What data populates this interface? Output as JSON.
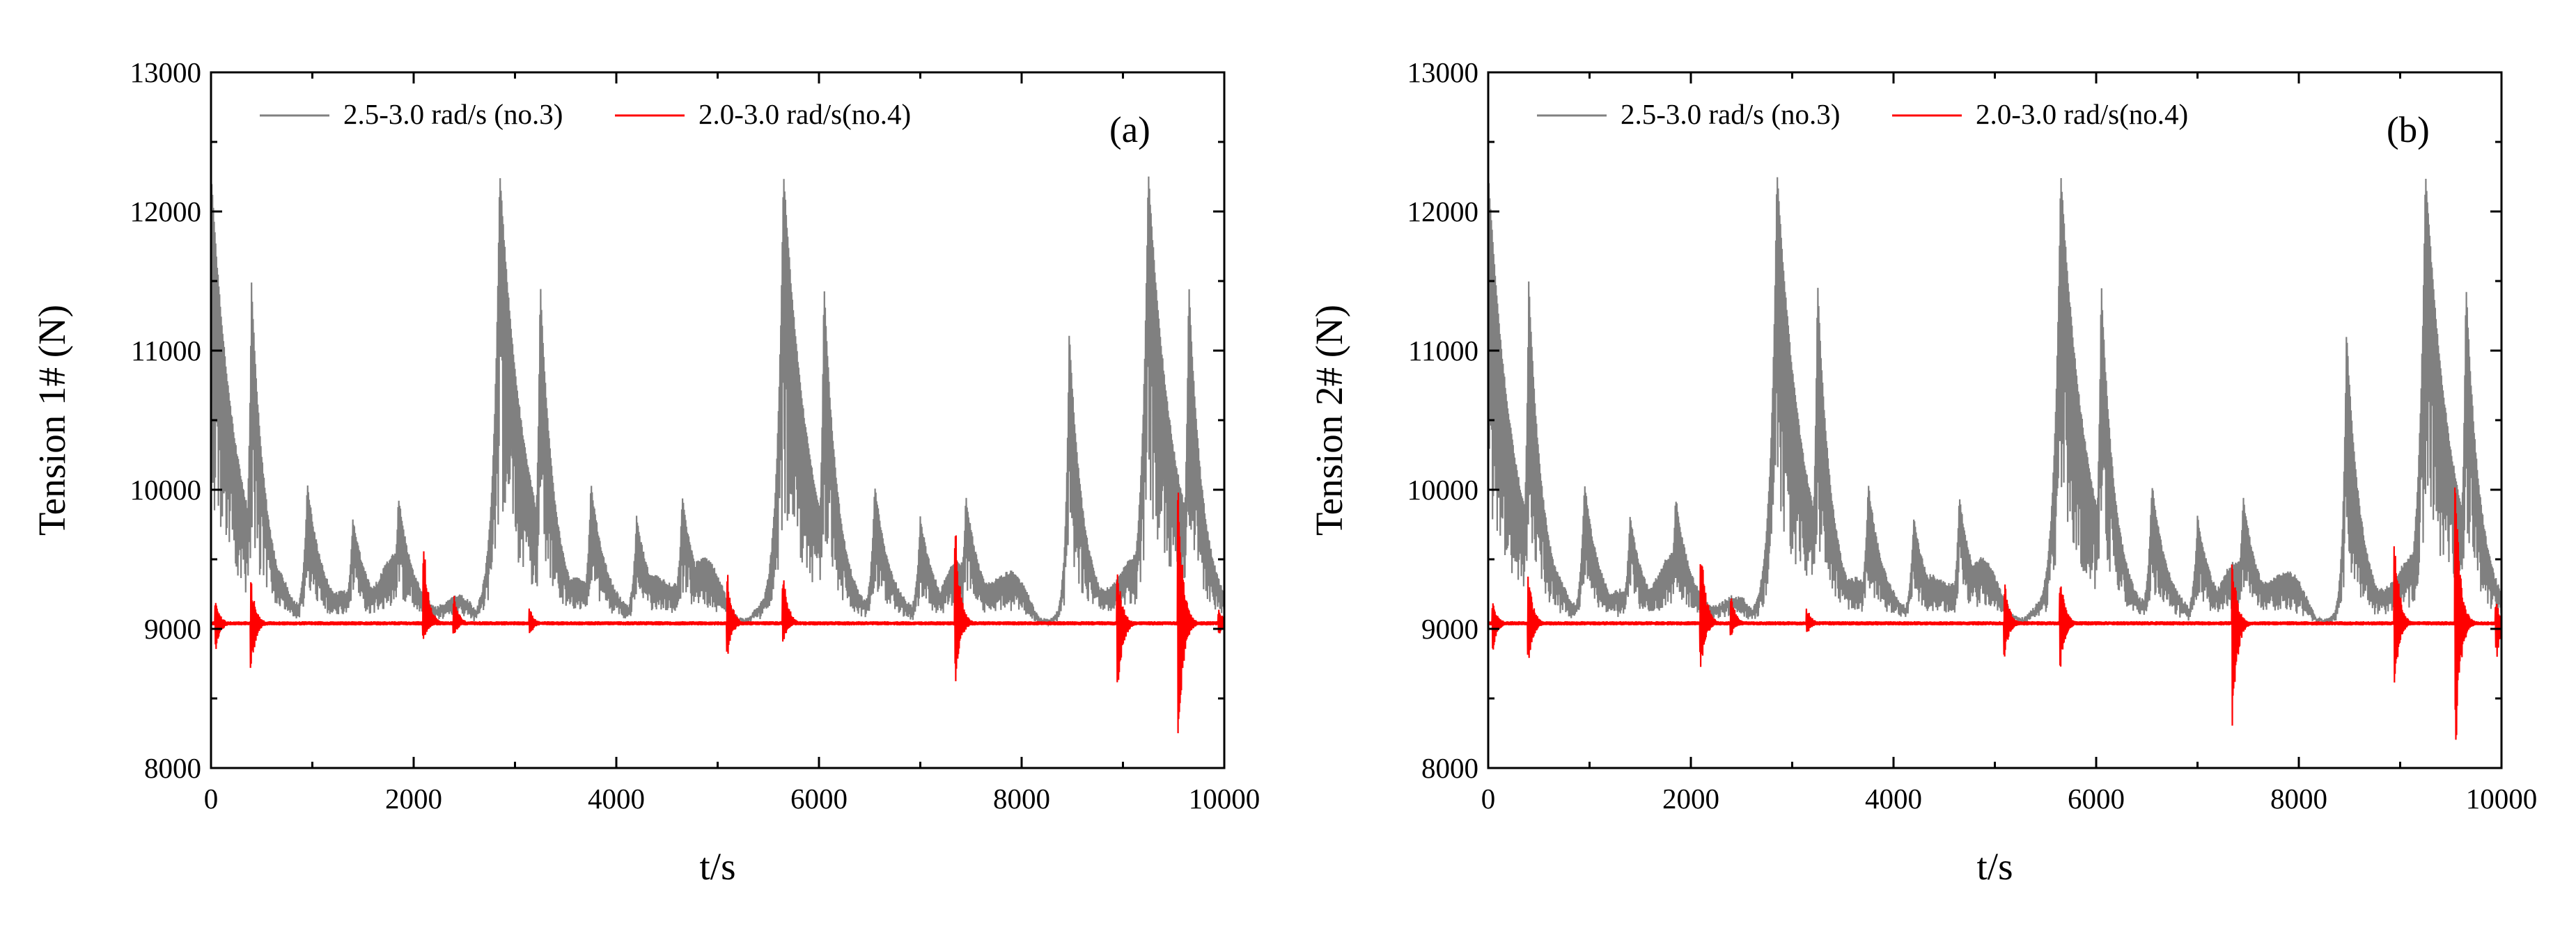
{
  "chart_data": [
    {
      "type": "line",
      "panel_label": "(a)",
      "xlabel": "t/s",
      "ylabel": "Tension 1# (N)",
      "xlim": [
        0,
        10000
      ],
      "ylim": [
        8000,
        13000
      ],
      "xticks": [
        0,
        2000,
        4000,
        6000,
        8000,
        10000
      ],
      "yticks": [
        8000,
        9000,
        10000,
        11000,
        12000,
        13000
      ],
      "legend_position": "top-left",
      "series": [
        {
          "name": "2.5-3.0 rad/s (no.3)",
          "color": "#808080",
          "baseline": 9050,
          "peaks": [
            {
              "t": 0,
              "v": 12300
            },
            {
              "t": 400,
              "v": 11500
            },
            {
              "t": 950,
              "v": 10050
            },
            {
              "t": 1400,
              "v": 9800
            },
            {
              "t": 1850,
              "v": 9950
            },
            {
              "t": 2850,
              "v": 12300
            },
            {
              "t": 3250,
              "v": 11500
            },
            {
              "t": 3750,
              "v": 10050
            },
            {
              "t": 4200,
              "v": 9800
            },
            {
              "t": 4650,
              "v": 9950
            },
            {
              "t": 5650,
              "v": 12300
            },
            {
              "t": 6050,
              "v": 11500
            },
            {
              "t": 6550,
              "v": 10050
            },
            {
              "t": 7000,
              "v": 9800
            },
            {
              "t": 7450,
              "v": 9950
            },
            {
              "t": 8470,
              "v": 11150
            },
            {
              "t": 9250,
              "v": 12300
            },
            {
              "t": 9650,
              "v": 11500
            }
          ]
        },
        {
          "name": "2.0-3.0 rad/s(no.4)",
          "color": "#ff0000",
          "baseline": 9040,
          "spikes": [
            {
              "t": 50,
              "max": 9200,
              "min": 8850
            },
            {
              "t": 400,
              "max": 9350,
              "min": 8700
            },
            {
              "t": 2100,
              "max": 9700,
              "min": 8900
            },
            {
              "t": 2400,
              "max": 9250,
              "min": 8950
            },
            {
              "t": 3150,
              "max": 9150,
              "min": 8950
            },
            {
              "t": 5100,
              "max": 9400,
              "min": 8800
            },
            {
              "t": 5650,
              "max": 9450,
              "min": 8900
            },
            {
              "t": 7350,
              "max": 9750,
              "min": 8600
            },
            {
              "t": 8950,
              "max": 9450,
              "min": 8450
            },
            {
              "t": 9550,
              "max": 10050,
              "min": 8100
            },
            {
              "t": 9950,
              "max": 9150,
              "min": 8950
            }
          ]
        }
      ]
    },
    {
      "type": "line",
      "panel_label": "(b)",
      "xlabel": "t/s",
      "ylabel": "Tension 2# (N)",
      "xlim": [
        0,
        10000
      ],
      "ylim": [
        8000,
        13000
      ],
      "xticks": [
        0,
        2000,
        4000,
        6000,
        8000,
        10000
      ],
      "yticks": [
        8000,
        9000,
        10000,
        11000,
        12000,
        13000
      ],
      "legend_position": "top-left",
      "series": [
        {
          "name": "2.5-3.0 rad/s (no.3)",
          "color": "#808080",
          "baseline": 9050,
          "peaks": [
            {
              "t": 0,
              "v": 12300
            },
            {
              "t": 400,
              "v": 11500
            },
            {
              "t": 950,
              "v": 10050
            },
            {
              "t": 1400,
              "v": 9800
            },
            {
              "t": 1850,
              "v": 9950
            },
            {
              "t": 2850,
              "v": 12300
            },
            {
              "t": 3250,
              "v": 11500
            },
            {
              "t": 3750,
              "v": 10050
            },
            {
              "t": 4200,
              "v": 9800
            },
            {
              "t": 4650,
              "v": 9950
            },
            {
              "t": 5650,
              "v": 12300
            },
            {
              "t": 6050,
              "v": 11500
            },
            {
              "t": 6550,
              "v": 10050
            },
            {
              "t": 7000,
              "v": 9800
            },
            {
              "t": 7450,
              "v": 9950
            },
            {
              "t": 8470,
              "v": 11150
            },
            {
              "t": 9250,
              "v": 12300
            },
            {
              "t": 9650,
              "v": 11500
            }
          ]
        },
        {
          "name": "2.0-3.0 rad/s(no.4)",
          "color": "#ff0000",
          "baseline": 9040,
          "spikes": [
            {
              "t": 50,
              "max": 9200,
              "min": 8850
            },
            {
              "t": 400,
              "max": 9400,
              "min": 8750
            },
            {
              "t": 2100,
              "max": 9700,
              "min": 8700
            },
            {
              "t": 2400,
              "max": 9250,
              "min": 8950
            },
            {
              "t": 3150,
              "max": 9150,
              "min": 8950
            },
            {
              "t": 5100,
              "max": 9350,
              "min": 8800
            },
            {
              "t": 5650,
              "max": 9400,
              "min": 8700
            },
            {
              "t": 7350,
              "max": 9500,
              "min": 8300
            },
            {
              "t": 8950,
              "max": 9700,
              "min": 8600
            },
            {
              "t": 9550,
              "max": 10100,
              "min": 8100
            },
            {
              "t": 9950,
              "max": 9200,
              "min": 8750
            }
          ]
        }
      ]
    }
  ]
}
